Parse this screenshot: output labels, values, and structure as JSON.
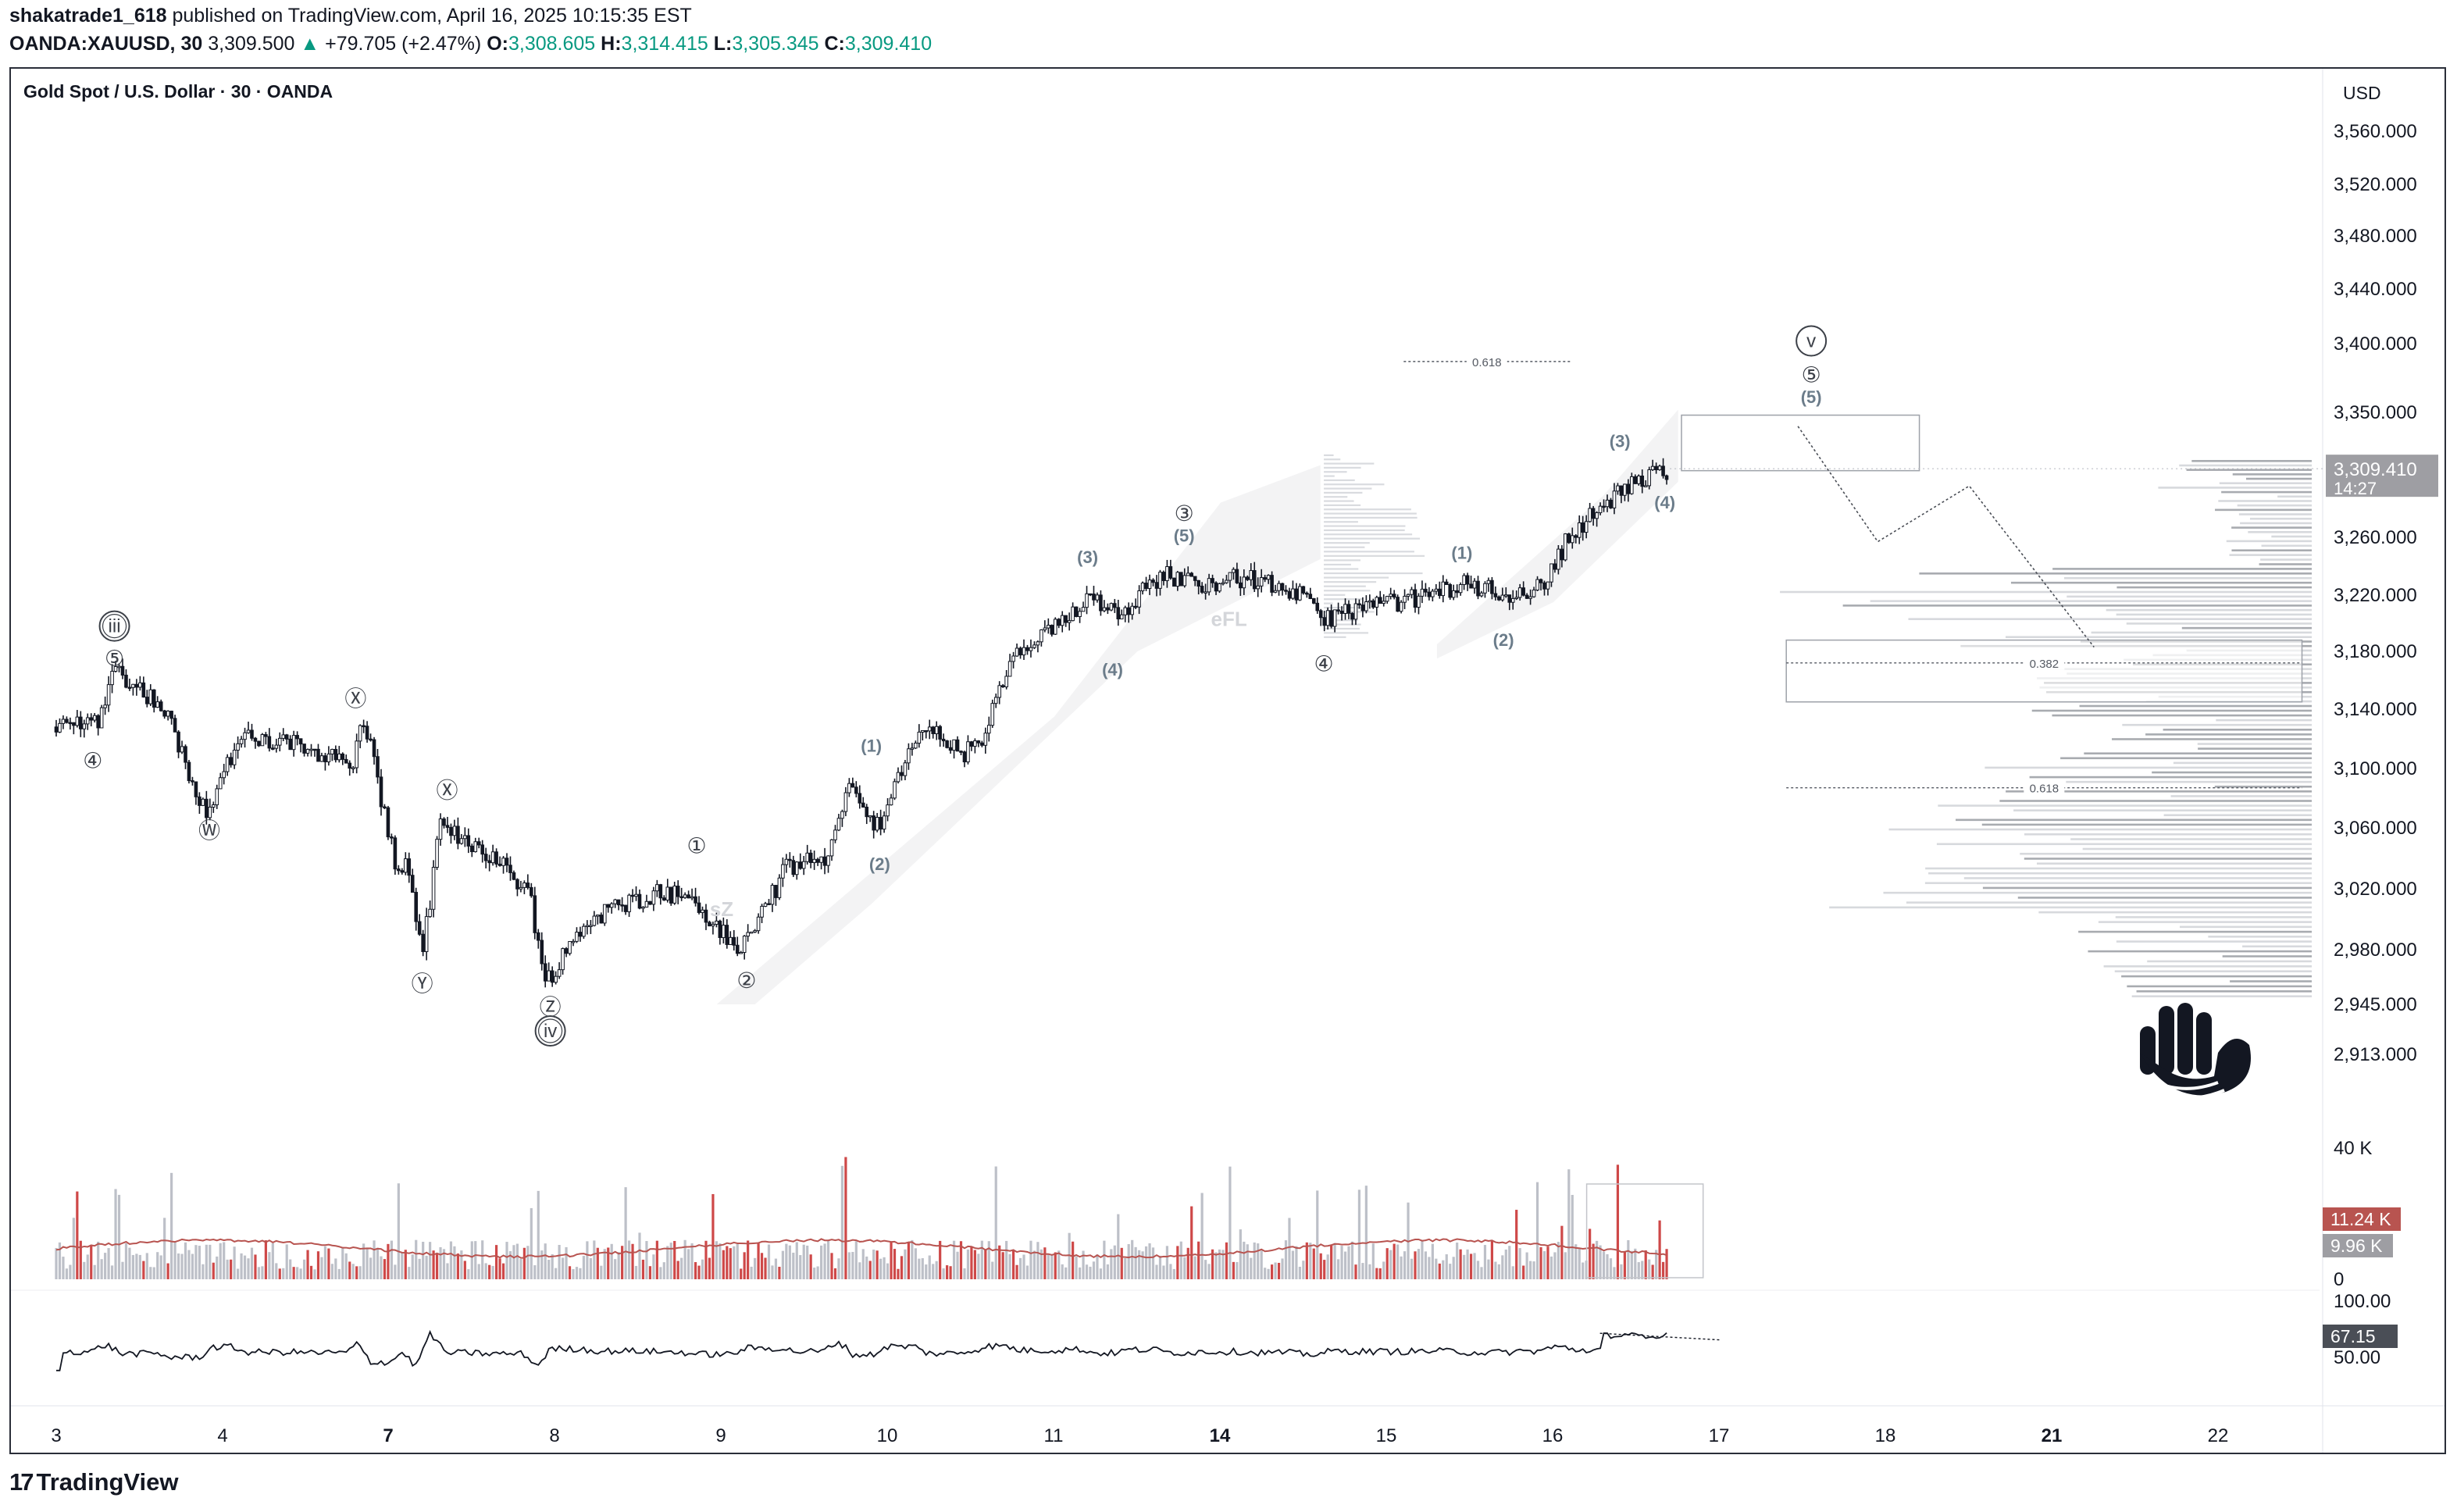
{
  "header": {
    "author": "shakatrade1_618",
    "published_text": "published on TradingView.com, April 16, 2025 10:15:35 EST",
    "symbol": "OANDA:XAUUSD, 30",
    "last": "3,309.500",
    "change_arrow": "▲",
    "change": "+79.705 (+2.47%)",
    "o_label": "O:",
    "o_value": "3,308.605",
    "h_label": "H:",
    "h_value": "3,314.415",
    "l_label": "L:",
    "l_value": "3,305.345",
    "c_label": "C:",
    "c_value": "3,309.410"
  },
  "chart_title": "Gold Spot / U.S. Dollar · 30 · OANDA",
  "currency": "USD",
  "price_axis": {
    "ticks": [
      "3,560.000",
      "3,520.000",
      "3,480.000",
      "3,440.000",
      "3,400.000",
      "3,350.000",
      "3,260.000",
      "3,220.000",
      "3,180.000",
      "3,140.000",
      "3,100.000",
      "3,060.000",
      "3,020.000",
      "2,980.000",
      "2,945.000",
      "2,913.000"
    ],
    "last_price": "3,309.410",
    "countdown": "14:27"
  },
  "volume_axis": {
    "top": "40 K",
    "bottom": "0",
    "vol_value": "11.24 K",
    "vol_ma": "9.96 K"
  },
  "rsi_axis": {
    "top": "100.00",
    "bottom": "50.00",
    "value": "67.15"
  },
  "time_axis": [
    "3",
    "4",
    "7",
    "8",
    "9",
    "10",
    "11",
    "14",
    "15",
    "16",
    "17",
    "18",
    "21",
    "22"
  ],
  "footer": {
    "brand": "TradingView",
    "logo": "17"
  },
  "colors": {
    "up": "#089981",
    "down": "#131722",
    "vol_red": "#c62828",
    "vol_grey": "#b2b5be",
    "label": "#5d6b7a",
    "axis_box": "#9e9ea3"
  },
  "chart_data": {
    "type": "candlestick",
    "title": "Gold Spot / U.S. Dollar · 30 · OANDA",
    "ylim": [
      2900,
      3580
    ],
    "x_ticks": [
      "3",
      "4",
      "7",
      "8",
      "9",
      "10",
      "11",
      "14",
      "15",
      "16",
      "17",
      "18",
      "21",
      "22"
    ],
    "price_path": [
      {
        "x": 0,
        "y": 3128
      },
      {
        "x": 0.25,
        "y": 3133
      },
      {
        "x": 0.35,
        "y": 3168
      },
      {
        "x": 0.55,
        "y": 3150
      },
      {
        "x": 0.65,
        "y": 3140
      },
      {
        "x": 0.9,
        "y": 3070
      },
      {
        "x": 1.1,
        "y": 3120
      },
      {
        "x": 1.5,
        "y": 3115
      },
      {
        "x": 1.78,
        "y": 3102
      },
      {
        "x": 1.85,
        "y": 3135
      },
      {
        "x": 2.05,
        "y": 3030
      },
      {
        "x": 2.12,
        "y": 3035
      },
      {
        "x": 2.2,
        "y": 2972
      },
      {
        "x": 2.3,
        "y": 3060
      },
      {
        "x": 2.55,
        "y": 3048
      },
      {
        "x": 2.85,
        "y": 3018
      },
      {
        "x": 2.93,
        "y": 2958
      },
      {
        "x": 3.2,
        "y": 3000
      },
      {
        "x": 3.6,
        "y": 3018
      },
      {
        "x": 3.8,
        "y": 3015
      },
      {
        "x": 4.05,
        "y": 2985
      },
      {
        "x": 4.1,
        "y": 2978
      },
      {
        "x": 4.4,
        "y": 3035
      },
      {
        "x": 4.65,
        "y": 3040
      },
      {
        "x": 4.75,
        "y": 3090
      },
      {
        "x": 4.95,
        "y": 3060
      },
      {
        "x": 5.2,
        "y": 3130
      },
      {
        "x": 5.45,
        "y": 3110
      },
      {
        "x": 5.55,
        "y": 3115
      },
      {
        "x": 5.75,
        "y": 3175
      },
      {
        "x": 6.05,
        "y": 3200
      },
      {
        "x": 6.2,
        "y": 3220
      },
      {
        "x": 6.4,
        "y": 3208
      },
      {
        "x": 6.65,
        "y": 3235
      },
      {
        "x": 6.85,
        "y": 3228
      },
      {
        "x": 7.15,
        "y": 3232
      },
      {
        "x": 7.45,
        "y": 3222
      },
      {
        "x": 7.62,
        "y": 3203
      },
      {
        "x": 7.8,
        "y": 3210
      },
      {
        "x": 8.2,
        "y": 3218
      },
      {
        "x": 8.45,
        "y": 3228
      },
      {
        "x": 8.75,
        "y": 3220
      },
      {
        "x": 8.95,
        "y": 3227
      },
      {
        "x": 9.1,
        "y": 3263
      },
      {
        "x": 9.4,
        "y": 3292
      },
      {
        "x": 9.5,
        "y": 3300
      },
      {
        "x": 9.7,
        "y": 3309.41
      }
    ],
    "last_price": 3309.41,
    "annotations": {
      "elliott_labels": [
        {
          "text": "iii",
          "x": 0.35,
          "y": 3198,
          "style": "double-circle"
        },
        {
          "text": "⑤",
          "x": 0.35,
          "y": 3175
        },
        {
          "text": "④",
          "x": 0.22,
          "y": 3105
        },
        {
          "text": "Ⓦ",
          "x": 0.92,
          "y": 3058
        },
        {
          "text": "Ⓧ",
          "x": 1.8,
          "y": 3147
        },
        {
          "text": "Ⓧ",
          "x": 2.35,
          "y": 3085
        },
        {
          "text": "Ⓨ",
          "x": 2.2,
          "y": 2958
        },
        {
          "text": "Ⓩ",
          "x": 2.97,
          "y": 2943
        },
        {
          "text": "iv",
          "x": 2.97,
          "y": 2928,
          "style": "double-circle"
        },
        {
          "text": "①",
          "x": 3.85,
          "y": 3048
        },
        {
          "text": "②",
          "x": 4.15,
          "y": 2960
        },
        {
          "text": "(1)",
          "x": 4.9,
          "y": 3116
        },
        {
          "text": "(2)",
          "x": 4.95,
          "y": 3037
        },
        {
          "text": "(3)",
          "x": 6.2,
          "y": 3247
        },
        {
          "text": "(4)",
          "x": 6.35,
          "y": 3168
        },
        {
          "text": "③",
          "x": 6.78,
          "y": 3277
        },
        {
          "text": "(5)",
          "x": 6.78,
          "y": 3262
        },
        {
          "text": "④",
          "x": 7.62,
          "y": 3171
        },
        {
          "text": "(1)",
          "x": 8.45,
          "y": 3250
        },
        {
          "text": "(2)",
          "x": 8.7,
          "y": 3189
        },
        {
          "text": "(3)",
          "x": 9.4,
          "y": 3330
        },
        {
          "text": "(4)",
          "x": 9.67,
          "y": 3286
        },
        {
          "text": "v",
          "x": 10.55,
          "y": 3402,
          "style": "circle"
        },
        {
          "text": "⑤",
          "x": 10.55,
          "y": 3377
        },
        {
          "text": "(5)",
          "x": 10.55,
          "y": 3362
        }
      ],
      "text_marks": [
        {
          "text": "sZ",
          "x": 4.0,
          "y": 3002
        },
        {
          "text": "eFL",
          "x": 7.05,
          "y": 3198
        }
      ],
      "fib_levels": [
        {
          "label": "0.618",
          "y": 3387,
          "x_start": 8.1,
          "x_end": 9.1
        },
        {
          "label": "0.382",
          "y": 3172,
          "x_start": 10.4,
          "x_end": 13.5
        },
        {
          "label": "0.618",
          "y": 3087,
          "x_start": 10.4,
          "x_end": 13.5
        }
      ],
      "target_zones": [
        {
          "x_start": 9.77,
          "x_end": 11.2,
          "y_low": 3308,
          "y_high": 3348
        },
        {
          "x_start": 10.4,
          "x_end": 13.5,
          "y_low": 3145,
          "y_high": 3188
        }
      ],
      "projection_path": [
        {
          "x": 10.47,
          "y": 3340
        },
        {
          "x": 10.95,
          "y": 3257
        },
        {
          "x": 11.5,
          "y": 3297
        },
        {
          "x": 12.25,
          "y": 3183
        }
      ]
    },
    "volume": {
      "ylim": [
        0,
        40000
      ],
      "last": 11240,
      "ma": 9960
    },
    "rsi": {
      "ylim": [
        50,
        100
      ],
      "last": 67.15
    }
  }
}
